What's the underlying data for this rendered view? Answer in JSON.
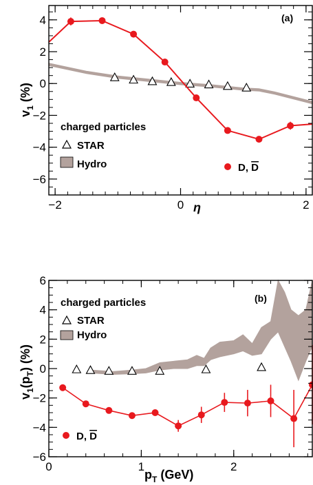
{
  "chart_data": [
    {
      "type": "line",
      "panel_label": "(a)",
      "xlabel": "η",
      "ylabel": "v",
      "ylabel_sub": "1",
      "ylabel_unit": " (%)",
      "xlim": [
        -2.1,
        2.1
      ],
      "ylim": [
        -7,
        4.9
      ],
      "x_ticks": [
        -2,
        0,
        2
      ],
      "y_ticks": [
        -6,
        -4,
        -2,
        0,
        2,
        4
      ],
      "x_tick_labels": [
        "−2",
        "0",
        "2"
      ],
      "y_tick_labels": [
        "−6",
        "−4",
        "−2",
        "0",
        "2",
        "4"
      ],
      "legend_title": "charged particles",
      "legend_star": "STAR",
      "legend_hydro": "Hydro",
      "legend_d": "D, D",
      "legend_d_plain": "D, ",
      "legend_d_bar": "D",
      "series": [
        {
          "name": "D, D",
          "color": "#e8191e",
          "x": [
            -2.1,
            -1.75,
            -1.25,
            -0.75,
            -0.25,
            0.25,
            0.75,
            1.25,
            1.75,
            2.1
          ],
          "y": [
            2.6,
            3.9,
            3.95,
            3.1,
            1.35,
            -0.9,
            -2.95,
            -3.5,
            -2.65,
            -2.55
          ],
          "markers": [
            false,
            true,
            true,
            true,
            true,
            true,
            true,
            true,
            true,
            false
          ],
          "yerr": [
            0,
            0.25,
            0.15,
            0.15,
            0.15,
            0.15,
            0.15,
            0.15,
            0.25,
            0
          ]
        },
        {
          "name": "STAR",
          "x": [
            -1.0,
            -0.8,
            -0.6,
            -0.4,
            -0.2,
            0.0,
            0.2,
            0.4,
            0.6,
            0.8,
            1.0
          ],
          "y": [
            0.35,
            0.2,
            0.1,
            0.05,
            0.0,
            -0.05,
            -0.05,
            -0.1,
            -0.15,
            -0.2,
            -0.25
          ],
          "marker_x": [
            -1.05,
            -0.75,
            -0.45,
            -0.15,
            0.15,
            0.45,
            0.75,
            1.05
          ],
          "marker_y": [
            0.35,
            0.2,
            0.1,
            0.05,
            -0.05,
            -0.1,
            -0.2,
            -0.3
          ]
        },
        {
          "name": "Hydro",
          "color": "#b3a29d",
          "x": [
            -2.1,
            -1.5,
            -1.0,
            -0.5,
            0.0,
            0.5,
            1.0,
            1.25,
            1.5,
            2.1
          ],
          "y": [
            1.2,
            0.7,
            0.4,
            0.2,
            0.0,
            -0.15,
            -0.35,
            -0.4,
            -0.6,
            -1.2
          ]
        }
      ]
    },
    {
      "type": "line",
      "panel_label": "(b)",
      "xlabel_main": "p",
      "xlabel_sub": "T",
      "xlabel_unit": " (GeV)",
      "ylabel": "v",
      "ylabel_sub": "1",
      "ylabel_paren": "(p",
      "ylabel_paren_sub": "T",
      "ylabel_unit": ") (%)",
      "xlim": [
        0,
        2.85
      ],
      "ylim": [
        -6,
        6
      ],
      "x_ticks": [
        0,
        1,
        2
      ],
      "y_ticks": [
        -6,
        -4,
        -2,
        0,
        2,
        4,
        6
      ],
      "x_tick_labels": [
        "0",
        "1",
        "2"
      ],
      "y_tick_labels": [
        "−6",
        "−4",
        "−2",
        "0",
        "2",
        "4",
        "6"
      ],
      "legend_title": "charged particles",
      "legend_star": "STAR",
      "legend_hydro": "Hydro",
      "legend_d_plain": "D, ",
      "legend_d_bar": "D",
      "series": [
        {
          "name": "D, D",
          "color": "#e8191e",
          "x": [
            0.15,
            0.4,
            0.65,
            0.9,
            1.15,
            1.4,
            1.65,
            1.9,
            2.15,
            2.4,
            2.65,
            2.85
          ],
          "y": [
            -1.3,
            -2.4,
            -2.85,
            -3.2,
            -3.0,
            -3.9,
            -3.15,
            -2.3,
            -2.35,
            -2.2,
            -3.4,
            -1.1
          ],
          "yerr": [
            0.15,
            0.15,
            0.15,
            0.15,
            0.2,
            0.4,
            0.55,
            0.65,
            0.9,
            1.1,
            1.95,
            2.7
          ]
        },
        {
          "name": "STAR",
          "x": [
            0.3,
            0.45,
            0.65,
            0.9,
            1.2,
            1.7,
            2.3
          ],
          "y": [
            -0.1,
            -0.15,
            -0.2,
            -0.2,
            -0.2,
            -0.1,
            0.05
          ]
        },
        {
          "name": "Hydro",
          "color": "#b3a29d",
          "x": [
            0.45,
            0.7,
            0.9,
            1.05,
            1.2,
            1.35,
            1.5,
            1.6,
            1.68,
            1.75,
            1.85,
            2.0,
            2.1,
            2.2,
            2.3,
            2.4,
            2.48,
            2.55,
            2.62,
            2.7,
            2.78,
            2.85
          ],
          "y_low": [
            -0.3,
            -0.4,
            -0.35,
            -0.3,
            -0.1,
            0.0,
            0.0,
            0.2,
            0.2,
            0.6,
            0.8,
            1.0,
            1.2,
            0.9,
            1.0,
            2.0,
            2.5,
            1.5,
            0.5,
            -0.8,
            0.5,
            1.5
          ],
          "y_high": [
            -0.1,
            -0.2,
            -0.1,
            0.0,
            0.4,
            0.5,
            0.6,
            0.9,
            0.7,
            1.4,
            1.8,
            1.9,
            2.3,
            1.7,
            2.8,
            3.2,
            6.0,
            5.2,
            4.0,
            3.6,
            4.0,
            6.0
          ]
        }
      ]
    }
  ],
  "colors": {
    "d_meson": "#e8191e",
    "hydro": "#b3a29d",
    "axis": "#000000"
  }
}
